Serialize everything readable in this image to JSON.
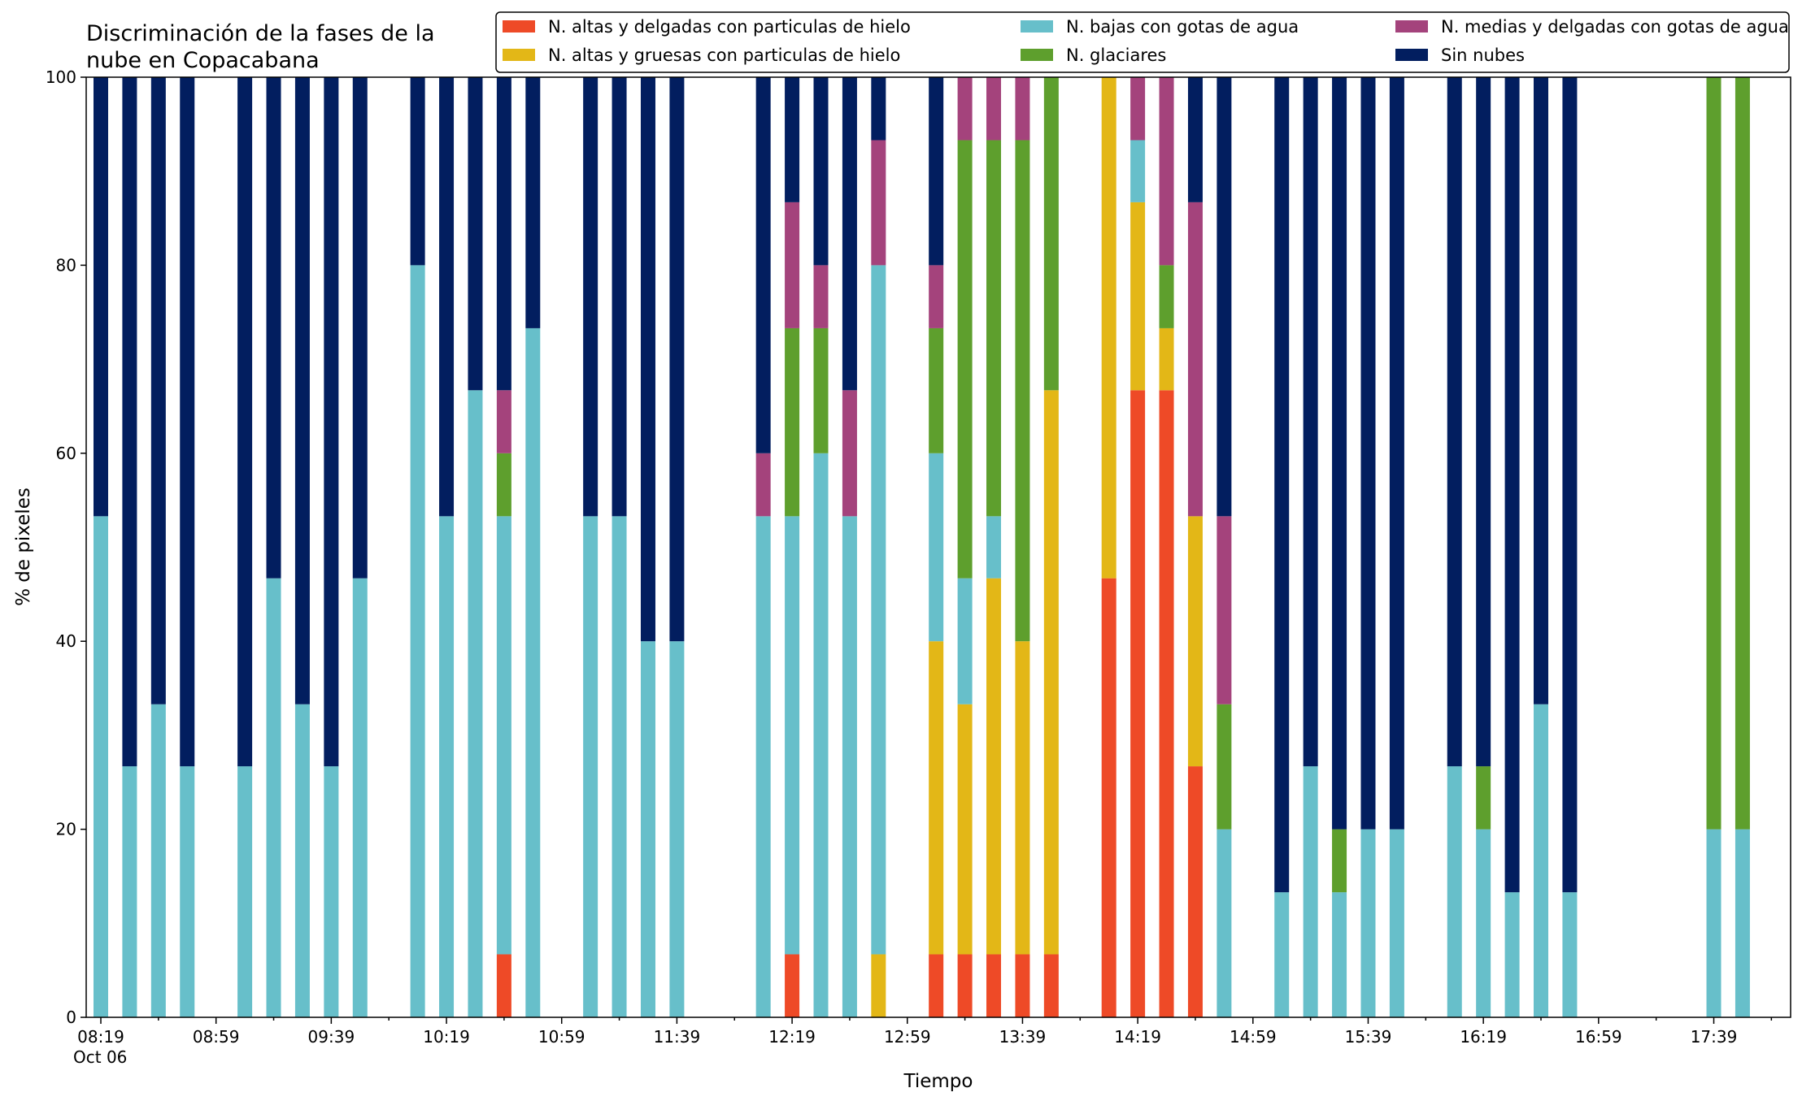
{
  "chart_data": {
    "type": "bar",
    "stacked": true,
    "title_lines": [
      "Discriminación de la fases de la",
      "nube en Copacabana"
    ],
    "xlabel": "Tiempo",
    "ylabel": "% de pixeles",
    "ylim": [
      0,
      100
    ],
    "yticks": [
      0,
      20,
      40,
      60,
      80,
      100
    ],
    "x_date_label": "Oct 06",
    "xtick_labels": [
      "08:19",
      "08:59",
      "09:39",
      "10:19",
      "10:59",
      "11:39",
      "12:19",
      "12:59",
      "13:39",
      "14:19",
      "14:59",
      "15:39",
      "16:19",
      "16:59",
      "17:39"
    ],
    "grid": false,
    "legend_position": "top-right",
    "series": [
      {
        "name": "N. altas y delgadas con particulas de hielo",
        "color": "#EE4A27"
      },
      {
        "name": "N. altas y gruesas con particulas de hielo",
        "color": "#E3B717"
      },
      {
        "name": "N. bajas con gotas de agua",
        "color": "#67BFCA"
      },
      {
        "name": "N. glaciares",
        "color": "#5E9F2D"
      },
      {
        "name": "N. medias y delgadas con gotas de agua",
        "color": "#A4437C"
      },
      {
        "name": "Sin nubes",
        "color": "#021E5F"
      }
    ],
    "times": [
      "08:19",
      "08:29",
      "08:39",
      "08:49",
      "08:59",
      "09:09",
      "09:19",
      "09:29",
      "09:39",
      "09:49",
      "09:59",
      "10:09",
      "10:19",
      "10:29",
      "10:39",
      "10:49",
      "10:59",
      "11:09",
      "11:19",
      "11:29",
      "11:39",
      "11:49",
      "11:59",
      "12:09",
      "12:19",
      "12:29",
      "12:39",
      "12:49",
      "12:59",
      "13:09",
      "13:19",
      "13:29",
      "13:39",
      "13:49",
      "13:59",
      "14:09",
      "14:19",
      "14:29",
      "14:39",
      "14:49",
      "14:59",
      "15:09",
      "15:19",
      "15:29",
      "15:39",
      "15:49",
      "15:59",
      "16:09",
      "16:19",
      "16:29",
      "16:39",
      "16:49",
      "16:59",
      "17:09",
      "17:19",
      "17:29",
      "17:39",
      "17:49"
    ],
    "stack_values": [
      [
        0,
        0,
        53.3,
        0,
        0,
        46.7
      ],
      [
        0,
        0,
        26.7,
        0,
        0,
        73.3
      ],
      [
        0,
        0,
        33.3,
        0,
        0,
        66.7
      ],
      [
        0,
        0,
        26.7,
        0,
        0,
        73.3
      ],
      [
        0,
        0,
        0,
        0,
        0,
        0
      ],
      [
        0,
        0,
        26.7,
        0,
        0,
        73.3
      ],
      [
        0,
        0,
        46.7,
        0,
        0,
        53.3
      ],
      [
        0,
        0,
        33.3,
        0,
        0,
        66.7
      ],
      [
        0,
        0,
        26.7,
        0,
        0,
        73.3
      ],
      [
        0,
        0,
        46.7,
        0,
        0,
        53.3
      ],
      [
        0,
        0,
        0,
        0,
        0,
        0
      ],
      [
        0,
        0,
        80,
        0,
        0,
        20
      ],
      [
        0,
        0,
        53.3,
        0,
        0,
        46.7
      ],
      [
        0,
        0,
        66.7,
        0,
        0,
        33.3
      ],
      [
        6.7,
        0,
        46.6,
        6.7,
        6.7,
        33.3
      ],
      [
        0,
        0,
        73.3,
        0,
        0,
        26.7
      ],
      [
        0,
        0,
        0,
        0,
        0,
        0
      ],
      [
        0,
        0,
        53.3,
        0,
        0,
        46.7
      ],
      [
        0,
        0,
        53.3,
        0,
        0,
        46.7
      ],
      [
        0,
        0,
        40,
        0,
        0,
        60
      ],
      [
        0,
        0,
        40,
        0,
        0,
        60
      ],
      [
        0,
        0,
        0,
        0,
        0,
        0
      ],
      [
        0,
        0,
        0,
        0,
        0,
        0
      ],
      [
        0,
        0,
        53.3,
        0,
        6.7,
        40
      ],
      [
        6.7,
        0,
        46.6,
        20,
        13.4,
        13.3
      ],
      [
        0,
        0,
        60,
        13.3,
        6.7,
        20
      ],
      [
        0,
        0,
        53.3,
        0,
        13.4,
        33.3
      ],
      [
        0,
        6.7,
        73.3,
        0,
        13.3,
        6.7
      ],
      [
        0,
        0,
        0,
        0,
        0,
        0
      ],
      [
        6.7,
        33.3,
        20,
        13.3,
        6.7,
        20
      ],
      [
        6.7,
        26.6,
        13.4,
        46.6,
        6.7,
        0
      ],
      [
        6.7,
        40,
        6.6,
        40,
        6.7,
        0
      ],
      [
        6.7,
        33.3,
        0,
        53.3,
        6.7,
        0
      ],
      [
        6.7,
        60,
        0,
        33.3,
        0,
        0
      ],
      [
        0,
        0,
        0,
        0,
        0,
        0
      ],
      [
        46.7,
        53.3,
        0,
        0,
        0,
        0
      ],
      [
        66.7,
        20,
        6.6,
        0,
        6.7,
        0
      ],
      [
        66.7,
        6.6,
        0,
        6.7,
        20,
        0
      ],
      [
        26.7,
        26.6,
        0,
        0,
        33.4,
        13.3
      ],
      [
        0,
        0,
        20,
        13.3,
        20,
        46.7
      ],
      [
        0,
        0,
        0,
        0,
        0,
        0
      ],
      [
        0,
        0,
        13.3,
        0,
        0,
        86.7
      ],
      [
        0,
        0,
        26.7,
        0,
        0,
        73.3
      ],
      [
        0,
        0,
        13.3,
        6.7,
        0,
        80
      ],
      [
        0,
        0,
        20,
        0,
        0,
        80
      ],
      [
        0,
        0,
        20,
        0,
        0,
        80
      ],
      [
        0,
        0,
        0,
        0,
        0,
        0
      ],
      [
        0,
        0,
        26.7,
        0,
        0,
        73.3
      ],
      [
        0,
        0,
        20,
        6.7,
        0,
        73.3
      ],
      [
        0,
        0,
        13.3,
        0,
        0,
        86.7
      ],
      [
        0,
        0,
        33.3,
        0,
        0,
        66.7
      ],
      [
        0,
        0,
        13.3,
        0,
        0,
        86.7
      ],
      [
        0,
        0,
        0,
        0,
        0,
        0
      ],
      [
        0,
        0,
        0,
        0,
        0,
        0
      ],
      [
        0,
        0,
        0,
        0,
        0,
        0
      ],
      [
        0,
        0,
        0,
        0,
        0,
        0
      ],
      [
        0,
        0,
        20,
        80,
        0,
        0
      ],
      [
        0,
        0,
        20,
        80,
        0,
        0
      ]
    ]
  }
}
